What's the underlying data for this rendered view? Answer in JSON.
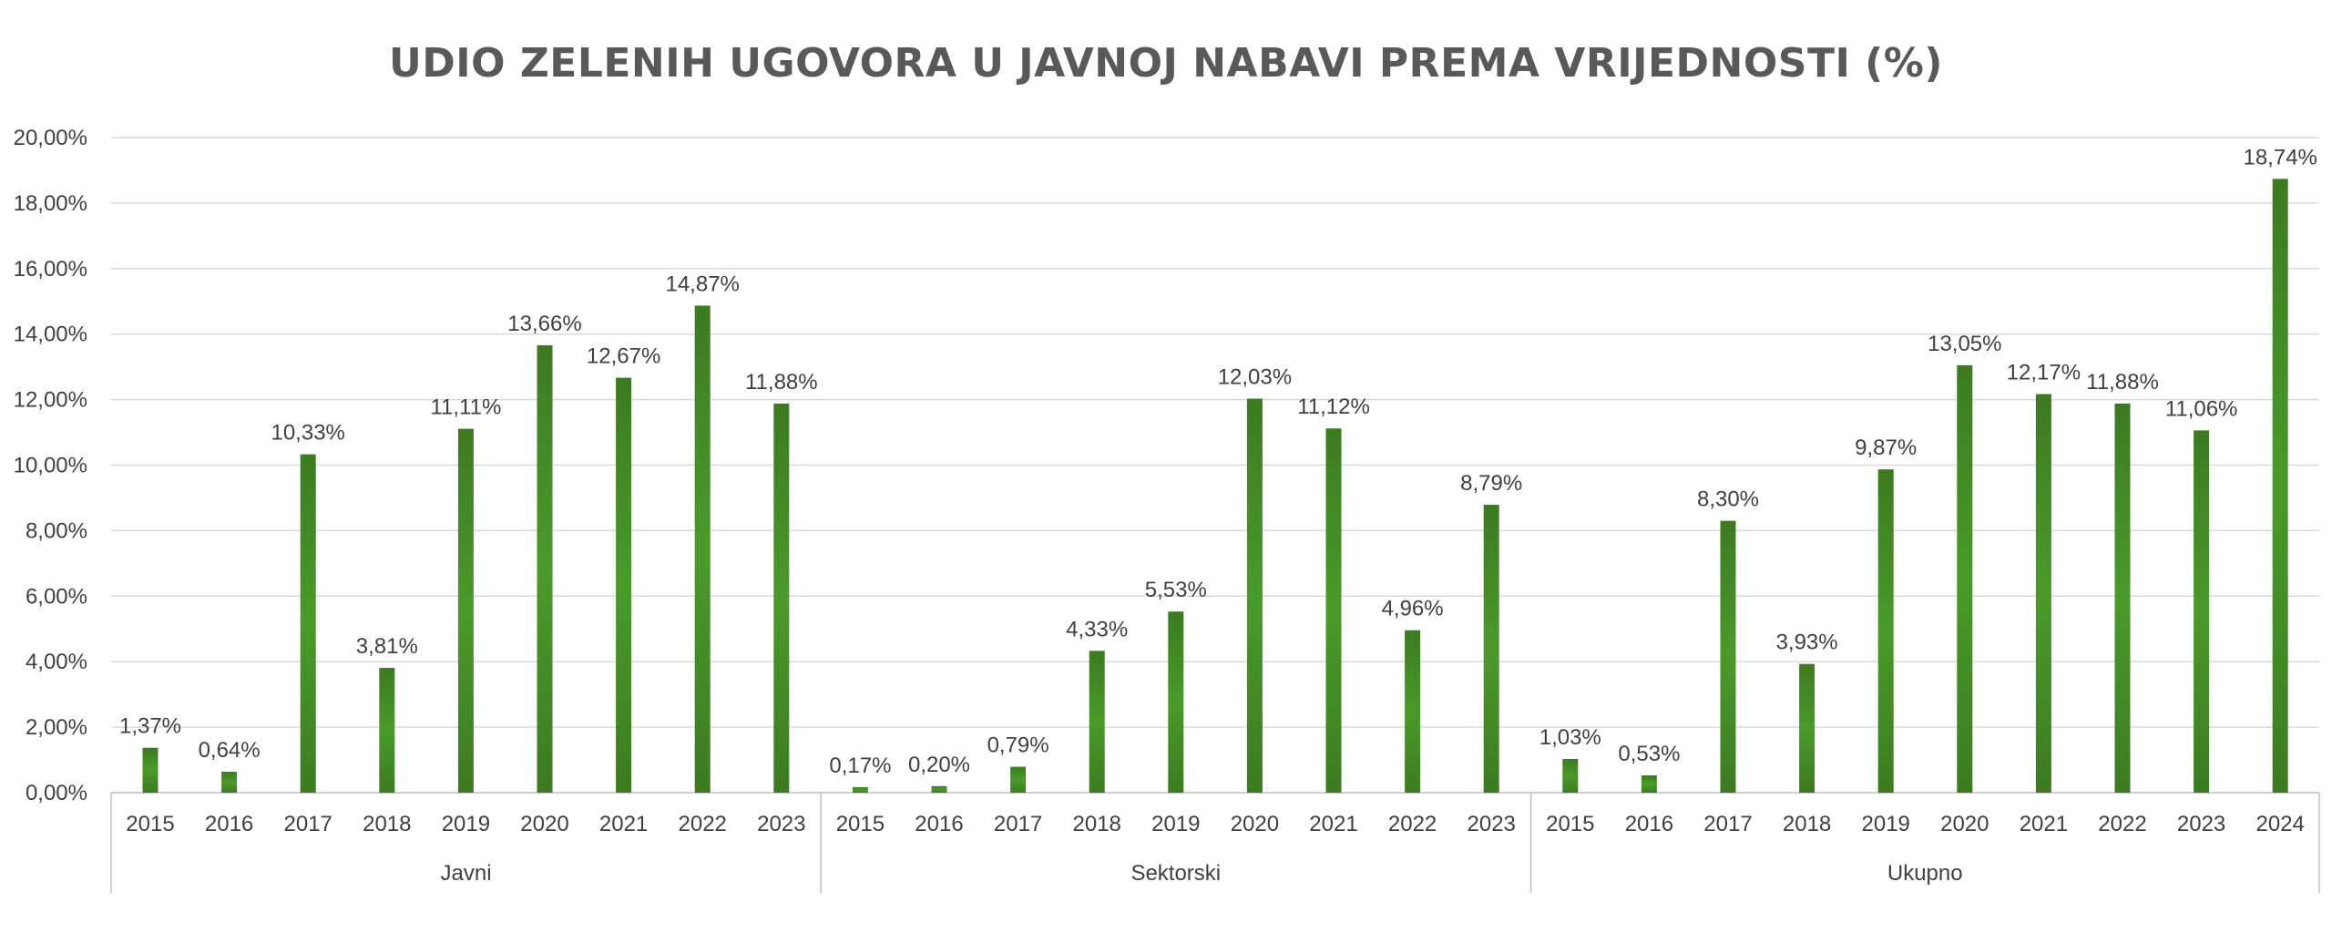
{
  "chart_data": {
    "type": "bar",
    "title": "UDIO ZELENIH UGOVORA U JAVNOJ NABAVI PREMA VRIJEDNOSTI (%)",
    "xlabel": "",
    "ylabel": "",
    "ylim": [
      0,
      20
    ],
    "yticks": [
      "0,00%",
      "2,00%",
      "4,00%",
      "6,00%",
      "8,00%",
      "10,00%",
      "12,00%",
      "14,00%",
      "16,00%",
      "18,00%",
      "20,00%"
    ],
    "grid": true,
    "legend": "none",
    "bar_color": "#3d7a22",
    "bar_highlight": "#4a9a2a",
    "groups": [
      {
        "name": "Javni",
        "categories": [
          "2015",
          "2016",
          "2017",
          "2018",
          "2019",
          "2020",
          "2021",
          "2022",
          "2023"
        ],
        "values": [
          1.37,
          0.64,
          10.33,
          3.81,
          11.11,
          13.66,
          12.67,
          14.87,
          11.88
        ],
        "labels": [
          "1,37%",
          "0,64%",
          "10,33%",
          "3,81%",
          "11,11%",
          "13,66%",
          "12,67%",
          "14,87%",
          "11,88%"
        ]
      },
      {
        "name": "Sektorski",
        "categories": [
          "2015",
          "2016",
          "2017",
          "2018",
          "2019",
          "2020",
          "2021",
          "2022",
          "2023"
        ],
        "values": [
          0.17,
          0.2,
          0.79,
          4.33,
          5.53,
          12.03,
          11.12,
          4.96,
          8.79
        ],
        "labels": [
          "0,17%",
          "0,20%",
          "0,79%",
          "4,33%",
          "5,53%",
          "12,03%",
          "11,12%",
          "4,96%",
          "8,79%"
        ]
      },
      {
        "name": "Ukupno",
        "categories": [
          "2015",
          "2016",
          "2017",
          "2018",
          "2019",
          "2020",
          "2021",
          "2022",
          "2023",
          "2024"
        ],
        "values": [
          1.03,
          0.53,
          8.3,
          3.93,
          9.87,
          13.05,
          12.17,
          11.88,
          11.06,
          18.74
        ],
        "labels": [
          "1,03%",
          "0,53%",
          "8,30%",
          "3,93%",
          "9,87%",
          "13,05%",
          "12,17%",
          "11,88%",
          "11,06%",
          "18,74%"
        ]
      }
    ]
  }
}
